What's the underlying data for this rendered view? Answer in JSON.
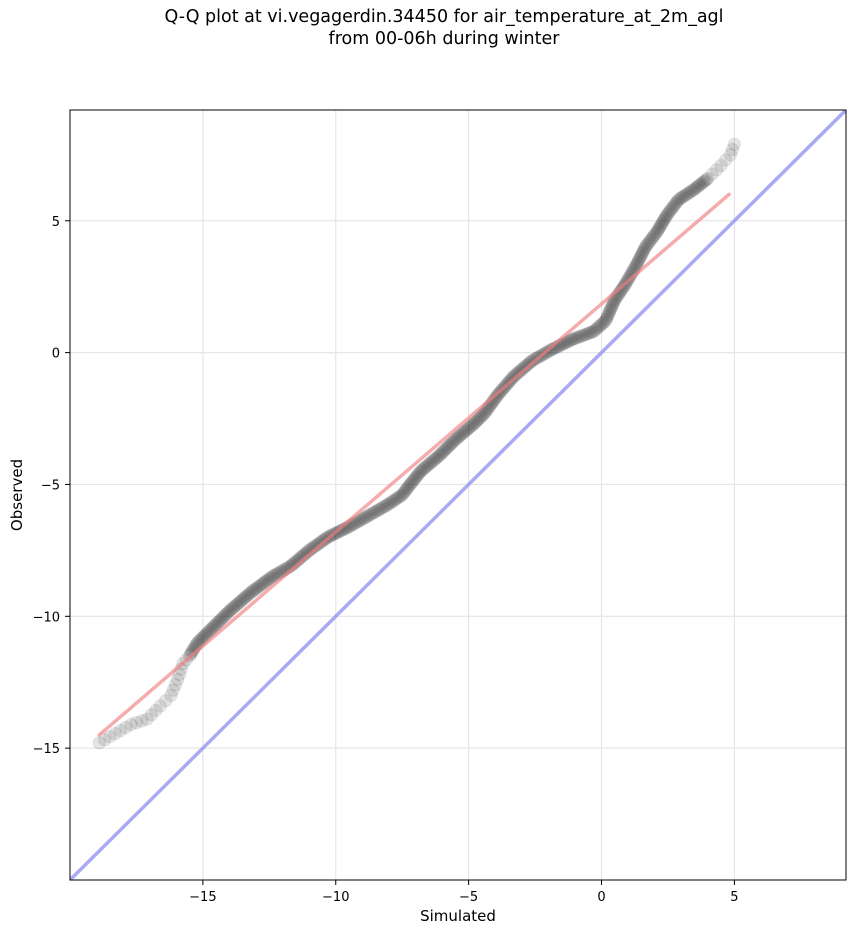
{
  "title_line1": "Q-Q plot at vi.vegagerdin.34450 for air_temperature_at_2m_agl",
  "title_line2": "from 00-06h during winter",
  "chart_data": {
    "type": "scatter",
    "xlabel": "Simulated",
    "ylabel": "Observed",
    "xlim": [
      -20,
      9.2
    ],
    "ylim": [
      -20,
      9.2
    ],
    "xticks": [
      -15,
      -10,
      -5,
      0,
      5
    ],
    "yticks": [
      -15,
      -10,
      -5,
      0,
      5
    ],
    "xtick_labels": [
      "−15",
      "−10",
      "−5",
      "0",
      "5"
    ],
    "ytick_labels": [
      "−15",
      "−10",
      "−5",
      "0",
      "5"
    ],
    "grid": true,
    "points_color": "#000000",
    "fit_line": {
      "x": [
        -18.9,
        4.8
      ],
      "y": [
        -14.5,
        6.0
      ],
      "color": "#f08080"
    },
    "identity_line": {
      "x": [
        -20,
        9.2
      ],
      "y": [
        -20,
        9.2
      ],
      "color": "#8c8cf0"
    },
    "quantile_curve": [
      [
        -18.9,
        -14.8
      ],
      [
        -17.7,
        -14.1
      ],
      [
        -17.1,
        -13.9
      ],
      [
        -16.6,
        -13.4
      ],
      [
        -16.2,
        -13.0
      ],
      [
        -15.95,
        -12.4
      ],
      [
        -15.75,
        -11.8
      ],
      [
        -15.5,
        -11.5
      ],
      [
        -15.2,
        -11.0
      ],
      [
        -14.6,
        -10.4
      ],
      [
        -14.0,
        -9.8
      ],
      [
        -13.2,
        -9.1
      ],
      [
        -12.4,
        -8.5
      ],
      [
        -11.7,
        -8.1
      ],
      [
        -11.0,
        -7.5
      ],
      [
        -10.3,
        -7.0
      ],
      [
        -9.5,
        -6.6
      ],
      [
        -8.8,
        -6.2
      ],
      [
        -8.1,
        -5.8
      ],
      [
        -7.5,
        -5.4
      ],
      [
        -7.2,
        -5.0
      ],
      [
        -6.8,
        -4.5
      ],
      [
        -6.1,
        -3.9
      ],
      [
        -5.5,
        -3.3
      ],
      [
        -4.8,
        -2.7
      ],
      [
        -4.4,
        -2.3
      ],
      [
        -3.9,
        -1.6
      ],
      [
        -3.3,
        -0.9
      ],
      [
        -2.6,
        -0.3
      ],
      [
        -1.9,
        0.1
      ],
      [
        -1.1,
        0.5
      ],
      [
        -0.3,
        0.8
      ],
      [
        0.15,
        1.2
      ],
      [
        0.5,
        2.0
      ],
      [
        0.9,
        2.6
      ],
      [
        1.3,
        3.3
      ],
      [
        1.65,
        4.0
      ],
      [
        2.1,
        4.6
      ],
      [
        2.45,
        5.2
      ],
      [
        2.9,
        5.8
      ],
      [
        3.5,
        6.2
      ],
      [
        4.0,
        6.6
      ],
      [
        4.5,
        7.1
      ],
      [
        4.85,
        7.5
      ],
      [
        5.0,
        7.9
      ]
    ]
  }
}
